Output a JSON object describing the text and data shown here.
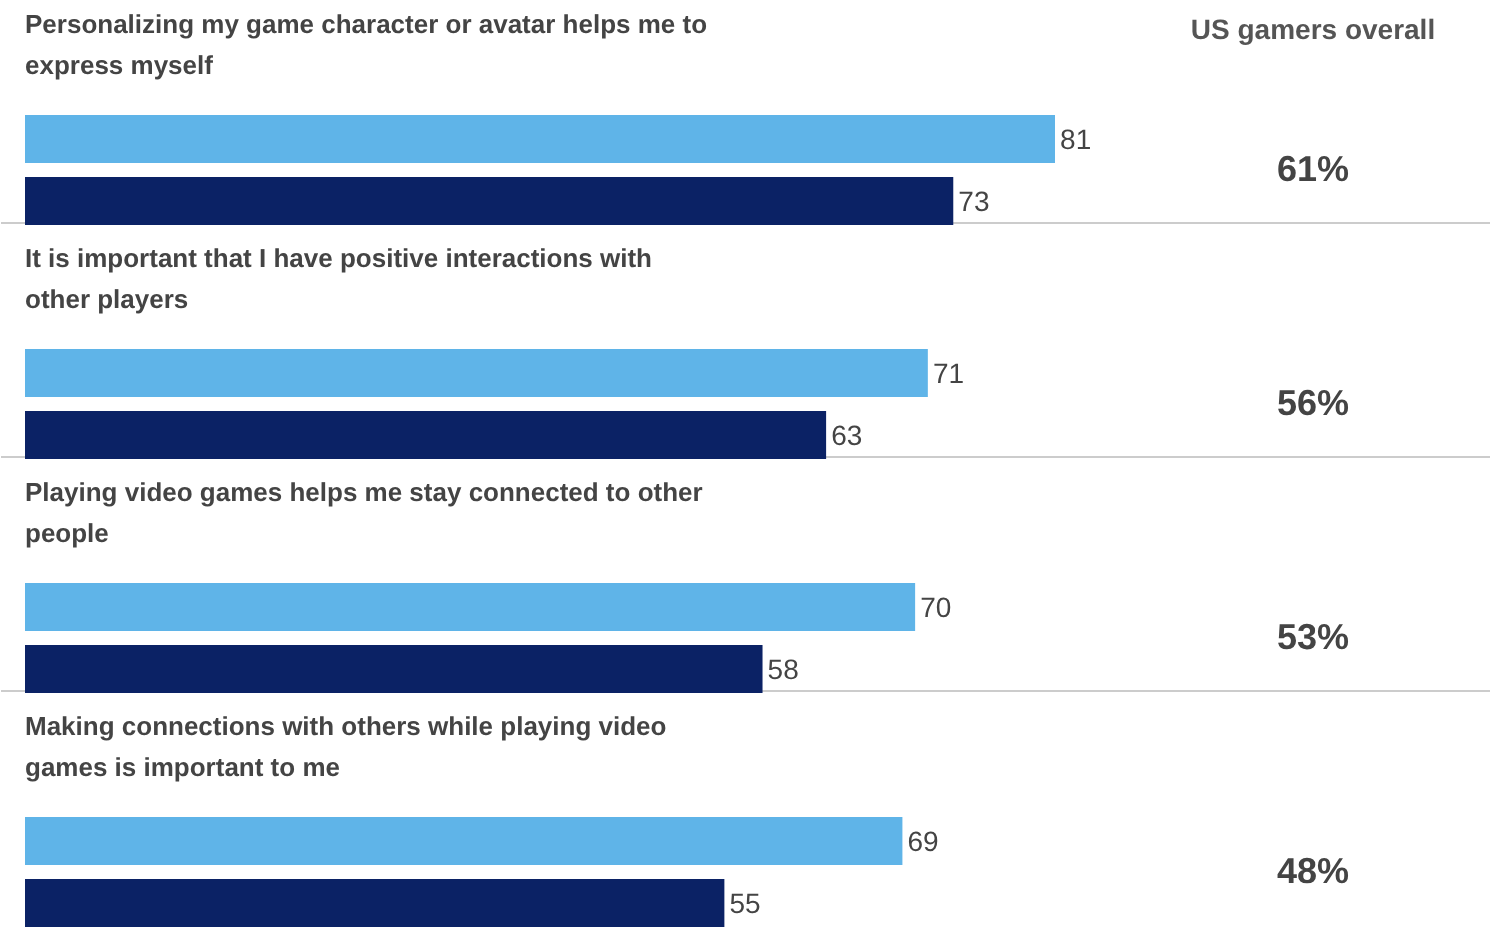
{
  "chart_data": {
    "type": "bar",
    "orientation": "horizontal",
    "data_labels": true,
    "categories": [
      "Personalizing my game character or avatar helps me to express myself",
      "It is important that I have positive interactions with other players",
      "Playing video games helps me stay connected to other people",
      "Making connections with others while playing video games is important to me"
    ],
    "series": [
      {
        "color": "#5fb4e8",
        "values": [
          81,
          71,
          70,
          69
        ]
      },
      {
        "color": "#0b2265",
        "values": [
          73,
          63,
          58,
          55
        ]
      }
    ],
    "annotations": [
      "US gamers overall",
      "61%",
      "56%",
      "53%",
      "48%"
    ]
  }
}
